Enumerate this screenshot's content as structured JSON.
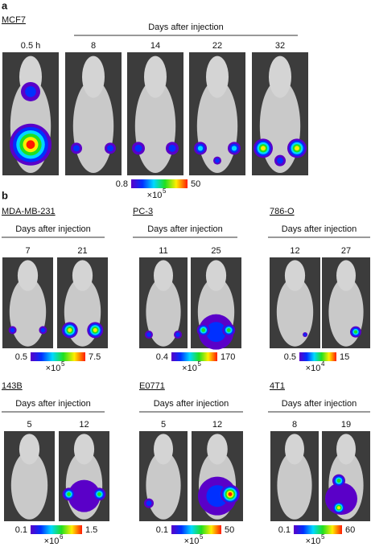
{
  "panel_a": {
    "label": "a",
    "cell_line": "MCF7",
    "header": "Days after injection",
    "times": [
      "0.5 h",
      "8",
      "14",
      "22",
      "32"
    ],
    "scale": {
      "min": "0.8",
      "max": "50",
      "multiplier": "×10",
      "exponent": "5"
    }
  },
  "panel_b": {
    "label": "b",
    "groups": [
      {
        "cell_line": "MDA-MB-231",
        "header": "Days after injection",
        "times": [
          "7",
          "21"
        ],
        "scale": {
          "min": "0.5",
          "max": "7.5",
          "multiplier": "×10",
          "exponent": "5"
        }
      },
      {
        "cell_line": "PC-3",
        "header": "Days after injection",
        "times": [
          "11",
          "25"
        ],
        "scale": {
          "min": "0.4",
          "max": "170",
          "multiplier": "×10",
          "exponent": "5"
        }
      },
      {
        "cell_line": "786-O",
        "header": "Days after injection",
        "times": [
          "12",
          "27"
        ],
        "scale": {
          "min": "0.5",
          "max": "15",
          "multiplier": "×10",
          "exponent": "4"
        }
      },
      {
        "cell_line": "143B",
        "header": "Days after injection",
        "times": [
          "5",
          "12"
        ],
        "scale": {
          "min": "0.1",
          "max": "1.5",
          "multiplier": "×10",
          "exponent": "6"
        }
      },
      {
        "cell_line": "E0771",
        "header": "Days after injection",
        "times": [
          "5",
          "12"
        ],
        "scale": {
          "min": "0.1",
          "max": "50",
          "multiplier": "×10",
          "exponent": "5"
        }
      },
      {
        "cell_line": "4T1",
        "header": "Days after injection",
        "times": [
          "8",
          "19"
        ],
        "scale": {
          "min": "0.1",
          "max": "60",
          "multiplier": "×10",
          "exponent": "5"
        }
      }
    ]
  }
}
